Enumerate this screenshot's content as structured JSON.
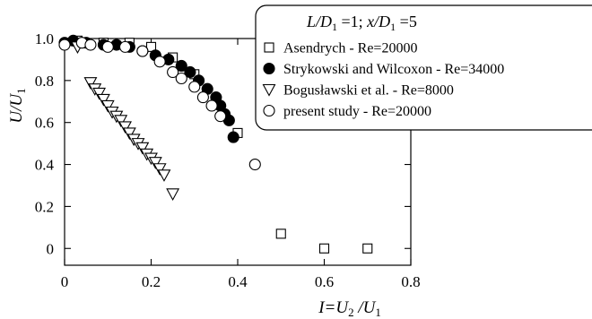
{
  "chart_data": {
    "type": "scatter",
    "title": "L/D1=1;  x/D1=5",
    "xlabel": "I=U2/U1",
    "ylabel": "U/U1",
    "xlim": [
      0,
      0.8
    ],
    "ylim": [
      -0.08,
      1.0
    ],
    "xticks": [
      "0",
      "0.2",
      "0.4",
      "0.6",
      "0.8"
    ],
    "yticks": [
      "0",
      "0.2",
      "0.4",
      "0.6",
      "0.8",
      "1.0"
    ],
    "xtick_values": [
      0,
      0.2,
      0.4,
      0.6,
      0.8
    ],
    "ytick_values": [
      0,
      0.2,
      0.4,
      0.6,
      0.8,
      1.0
    ],
    "grid": false,
    "legend_placement": "top-right",
    "series": [
      {
        "name": "Asendrych - Re=20000",
        "marker": "open-square",
        "x": [
          0.03,
          0.09,
          0.15,
          0.2,
          0.25,
          0.3,
          0.35,
          0.4,
          0.5,
          0.6,
          0.7
        ],
        "y": [
          0.99,
          0.98,
          0.98,
          0.96,
          0.91,
          0.83,
          0.71,
          0.55,
          0.07,
          0.0,
          0.0
        ]
      },
      {
        "name": "Strykowski and Wilcoxon - Re=34000",
        "marker": "filled-circle",
        "x": [
          0.0,
          0.02,
          0.05,
          0.09,
          0.12,
          0.15,
          0.18,
          0.21,
          0.24,
          0.27,
          0.29,
          0.31,
          0.33,
          0.35,
          0.36,
          0.37,
          0.38,
          0.39
        ],
        "y": [
          0.98,
          0.99,
          0.98,
          0.97,
          0.97,
          0.96,
          0.94,
          0.92,
          0.9,
          0.87,
          0.84,
          0.8,
          0.76,
          0.72,
          0.68,
          0.64,
          0.61,
          0.53
        ]
      },
      {
        "name": "Bogusławski et al. - Re=8000",
        "marker": "open-triangle-down",
        "x": [
          0.03,
          0.06,
          0.07,
          0.08,
          0.09,
          0.1,
          0.11,
          0.12,
          0.13,
          0.14,
          0.15,
          0.16,
          0.17,
          0.18,
          0.19,
          0.2,
          0.21,
          0.22,
          0.23,
          0.25
        ],
        "y": [
          0.96,
          0.79,
          0.76,
          0.74,
          0.71,
          0.68,
          0.65,
          0.63,
          0.61,
          0.58,
          0.55,
          0.52,
          0.5,
          0.48,
          0.45,
          0.43,
          0.41,
          0.38,
          0.35,
          0.26
        ]
      },
      {
        "name": "present study - Re=20000",
        "marker": "open-circle",
        "x": [
          0.0,
          0.04,
          0.06,
          0.1,
          0.14,
          0.18,
          0.22,
          0.25,
          0.27,
          0.3,
          0.32,
          0.34,
          0.36,
          0.44
        ],
        "y": [
          0.97,
          0.98,
          0.97,
          0.96,
          0.96,
          0.94,
          0.89,
          0.84,
          0.81,
          0.77,
          0.72,
          0.68,
          0.63,
          0.4
        ]
      }
    ]
  }
}
